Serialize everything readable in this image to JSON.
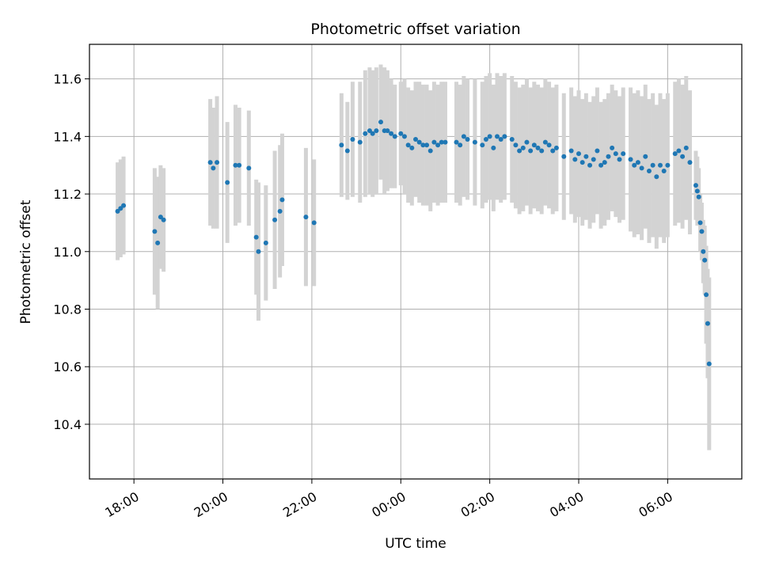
{
  "chart_data": {
    "type": "scatter",
    "title": "Photometric offset variation",
    "xlabel": "UTC time",
    "ylabel": "Photometric offset",
    "x_axis_kind": "time (HH:MM), crossing midnight",
    "xlim": [
      "17:00",
      "31:40"
    ],
    "ylim": [
      10.21,
      11.72
    ],
    "grid": true,
    "xticks": [
      {
        "value": "18:00",
        "label": "18:00"
      },
      {
        "value": "20:00",
        "label": "20:00"
      },
      {
        "value": "22:00",
        "label": "22:00"
      },
      {
        "value": "24:00",
        "label": "00:00"
      },
      {
        "value": "26:00",
        "label": "02:00"
      },
      {
        "value": "28:00",
        "label": "04:00"
      },
      {
        "value": "30:00",
        "label": "06:00"
      }
    ],
    "yticks": [
      10.4,
      10.6,
      10.8,
      11.0,
      11.2,
      11.4,
      11.6
    ],
    "colors": {
      "points": "#1f77b4",
      "errorbars": "#d3d3d3",
      "grid": "#b0b0b0"
    },
    "series": [
      {
        "x": [
          "17:38",
          "17:42",
          "17:46",
          "18:28",
          "18:32",
          "18:36",
          "18:40",
          "19:43",
          "19:47",
          "19:52",
          "20:06",
          "20:17",
          "20:22",
          "20:35",
          "20:45",
          "20:48",
          "20:58",
          "21:10",
          "21:17",
          "21:20",
          "21:52",
          "22:03",
          "22:40",
          "22:48",
          "22:55",
          "23:05",
          "23:12",
          "23:18",
          "23:22",
          "23:27",
          "23:33",
          "23:38",
          "23:42",
          "23:47",
          "23:52",
          "24:00",
          "24:05",
          "24:10",
          "24:15",
          "24:20",
          "24:25",
          "24:30",
          "24:35",
          "24:40",
          "24:45",
          "24:50",
          "24:55",
          "25:00",
          "25:15",
          "25:20",
          "25:25",
          "25:30",
          "25:40",
          "25:50",
          "25:55",
          "26:00",
          "26:05",
          "26:10",
          "26:15",
          "26:20",
          "26:30",
          "26:35",
          "26:40",
          "26:45",
          "26:50",
          "26:55",
          "27:00",
          "27:05",
          "27:10",
          "27:15",
          "27:20",
          "27:25",
          "27:30",
          "27:40",
          "27:50",
          "27:55",
          "28:00",
          "28:05",
          "28:10",
          "28:15",
          "28:20",
          "28:25",
          "28:30",
          "28:35",
          "28:40",
          "28:45",
          "28:50",
          "28:55",
          "29:00",
          "29:10",
          "29:15",
          "29:20",
          "29:25",
          "29:30",
          "29:35",
          "29:40",
          "29:45",
          "29:50",
          "29:55",
          "30:00",
          "30:10",
          "30:15",
          "30:20",
          "30:25",
          "30:30",
          "30:38",
          "30:40",
          "30:42",
          "30:44",
          "30:46",
          "30:48",
          "30:50",
          "30:52",
          "30:54",
          "30:56"
        ],
        "y": [
          11.14,
          11.15,
          11.16,
          11.07,
          11.03,
          11.12,
          11.11,
          11.31,
          11.29,
          11.31,
          11.24,
          11.3,
          11.3,
          11.29,
          11.05,
          11.0,
          11.03,
          11.11,
          11.14,
          11.18,
          11.12,
          11.1,
          11.37,
          11.35,
          11.39,
          11.38,
          11.41,
          11.42,
          11.41,
          11.42,
          11.45,
          11.42,
          11.42,
          11.41,
          11.4,
          11.41,
          11.4,
          11.37,
          11.36,
          11.39,
          11.38,
          11.37,
          11.37,
          11.35,
          11.38,
          11.37,
          11.38,
          11.38,
          11.38,
          11.37,
          11.4,
          11.39,
          11.38,
          11.37,
          11.39,
          11.4,
          11.36,
          11.4,
          11.39,
          11.4,
          11.39,
          11.37,
          11.35,
          11.36,
          11.38,
          11.35,
          11.37,
          11.36,
          11.35,
          11.38,
          11.37,
          11.35,
          11.36,
          11.33,
          11.35,
          11.32,
          11.34,
          11.31,
          11.33,
          11.3,
          11.32,
          11.35,
          11.3,
          11.31,
          11.33,
          11.36,
          11.34,
          11.32,
          11.34,
          11.32,
          11.3,
          11.31,
          11.29,
          11.33,
          11.28,
          11.3,
          11.26,
          11.3,
          11.28,
          11.3,
          11.34,
          11.35,
          11.33,
          11.36,
          11.31,
          11.23,
          11.21,
          11.19,
          11.1,
          11.07,
          11.0,
          10.97,
          10.85,
          10.75,
          10.61
        ],
        "yerr": [
          0.17,
          0.17,
          0.17,
          0.22,
          0.23,
          0.18,
          0.18,
          0.22,
          0.21,
          0.23,
          0.21,
          0.21,
          0.2,
          0.2,
          0.2,
          0.24,
          0.2,
          0.24,
          0.23,
          0.23,
          0.24,
          0.22,
          0.18,
          0.17,
          0.2,
          0.21,
          0.22,
          0.22,
          0.22,
          0.22,
          0.2,
          0.22,
          0.21,
          0.19,
          0.18,
          0.18,
          0.2,
          0.2,
          0.2,
          0.2,
          0.21,
          0.21,
          0.21,
          0.21,
          0.21,
          0.21,
          0.21,
          0.21,
          0.21,
          0.21,
          0.21,
          0.21,
          0.22,
          0.22,
          0.22,
          0.22,
          0.22,
          0.22,
          0.22,
          0.22,
          0.22,
          0.22,
          0.22,
          0.22,
          0.22,
          0.22,
          0.22,
          0.22,
          0.22,
          0.22,
          0.22,
          0.22,
          0.22,
          0.22,
          0.22,
          0.22,
          0.22,
          0.22,
          0.22,
          0.22,
          0.22,
          0.22,
          0.22,
          0.22,
          0.22,
          0.22,
          0.22,
          0.22,
          0.23,
          0.25,
          0.25,
          0.25,
          0.25,
          0.25,
          0.25,
          0.25,
          0.25,
          0.25,
          0.25,
          0.25,
          0.25,
          0.25,
          0.25,
          0.25,
          0.25,
          0.12,
          0.12,
          0.1,
          0.1,
          0.1,
          0.11,
          0.12,
          0.17,
          0.19,
          0.3
        ]
      }
    ]
  }
}
